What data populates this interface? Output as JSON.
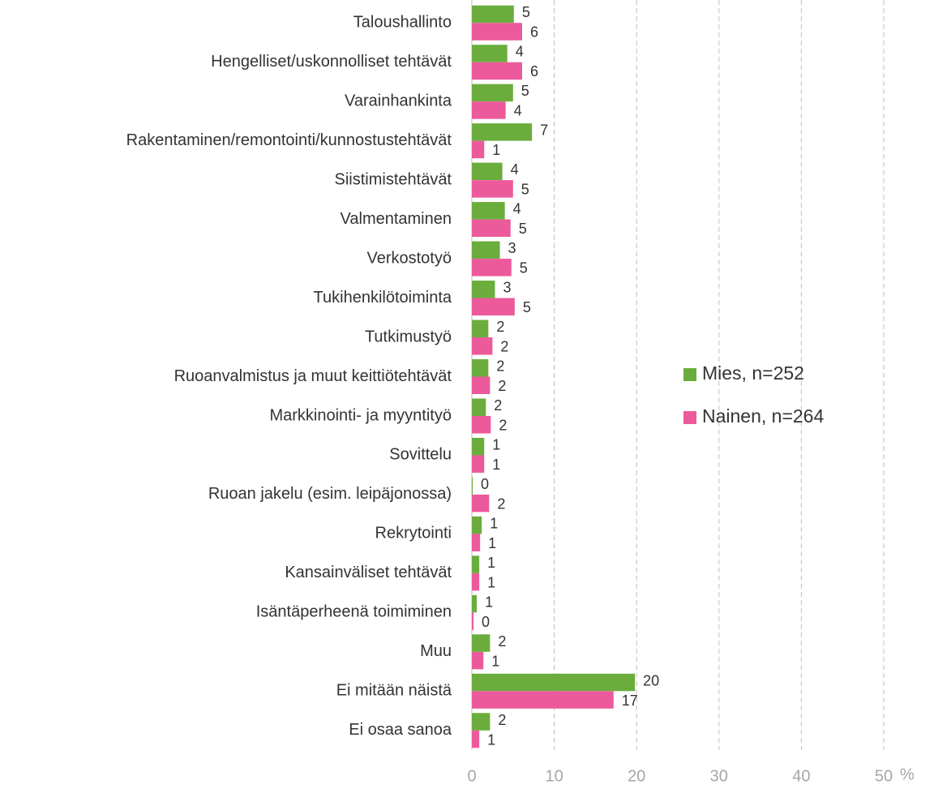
{
  "chart_data": {
    "type": "hbar",
    "categories": [
      "Taloushallinto",
      "Hengelliset/uskonnolliset tehtävät",
      "Varainhankinta",
      "Rakentaminen/remontointi/kunnostustehtävät",
      "Siistimistehtävät",
      "Valmentaminen",
      "Verkostotyö",
      "Tukihenkilötoiminta",
      "Tutkimustyö",
      "Ruoanvalmistus ja muut keittiötehtävät",
      "Markkinointi- ja myyntityö",
      "Sovittelu",
      "Ruoan jakelu (esim. leipäjonossa)",
      "Rekrytointi",
      "Kansainväliset tehtävät",
      "Isäntäperheenä toimiminen",
      "Muu",
      "Ei mitään näistä",
      "Ei osaa sanoa"
    ],
    "series": [
      {
        "name": "Mies, n=252",
        "color": "#6aad3d",
        "values": [
          5.1,
          4.3,
          5.0,
          7.3,
          3.7,
          4.0,
          3.4,
          2.8,
          2.0,
          2.0,
          1.7,
          1.5,
          0.1,
          1.2,
          0.9,
          0.6,
          2.2,
          19.8,
          2.2
        ],
        "value_labels": [
          "5",
          "4",
          "5",
          "7",
          "4",
          "4",
          "3",
          "3",
          "2",
          "2",
          "2",
          "1",
          "0",
          "1",
          "1",
          "1",
          "2",
          "20",
          "2"
        ]
      },
      {
        "name": "Nainen, n=264",
        "color": "#ec5a9b",
        "values": [
          6.1,
          6.1,
          4.1,
          1.5,
          5.0,
          4.7,
          4.8,
          5.2,
          2.5,
          2.2,
          2.3,
          1.5,
          2.1,
          1.0,
          0.9,
          0.2,
          1.4,
          17.2,
          0.9
        ],
        "value_labels": [
          "6",
          "6",
          "4",
          "1",
          "5",
          "5",
          "5",
          "5",
          "2",
          "2",
          "2",
          "1",
          "2",
          "1",
          "1",
          "0",
          "1",
          "17",
          "1"
        ]
      }
    ],
    "xlim": [
      0,
      50
    ],
    "xticks": [
      0,
      10,
      20,
      30,
      40,
      50
    ],
    "x_unit": "%",
    "grid": true,
    "legend": "right"
  }
}
